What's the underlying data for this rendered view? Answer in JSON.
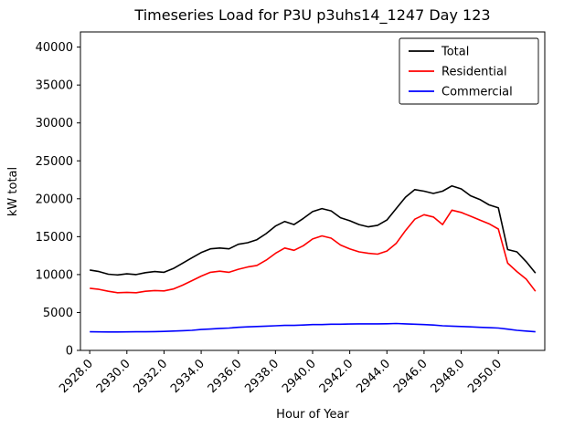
{
  "chart_data": {
    "type": "line",
    "title": "Timeseries Load for P3U p3uhs14_1247  Day 123",
    "xlabel": "Hour of Year",
    "ylabel": "kW total",
    "grid": false,
    "legend_position": "upper right",
    "xlim": [
      2927.5,
      2952.5
    ],
    "ylim": [
      0,
      42000
    ],
    "xticks": [
      2928,
      2930,
      2932,
      2934,
      2936,
      2938,
      2940,
      2942,
      2944,
      2946,
      2948,
      2950
    ],
    "xtick_labels": [
      "2928.0",
      "2930.0",
      "2932.0",
      "2934.0",
      "2936.0",
      "2938.0",
      "2940.0",
      "2942.0",
      "2944.0",
      "2946.0",
      "2948.0",
      "2950.0"
    ],
    "yticks": [
      0,
      5000,
      10000,
      15000,
      20000,
      25000,
      30000,
      35000,
      40000
    ],
    "ytick_labels": [
      "0",
      "5000",
      "10000",
      "15000",
      "20000",
      "25000",
      "30000",
      "35000",
      "40000"
    ],
    "x": [
      2928.0,
      2928.5,
      2929.0,
      2929.5,
      2930.0,
      2930.5,
      2931.0,
      2931.5,
      2932.0,
      2932.5,
      2933.0,
      2933.5,
      2934.0,
      2934.5,
      2935.0,
      2935.5,
      2936.0,
      2936.5,
      2937.0,
      2937.5,
      2938.0,
      2938.5,
      2939.0,
      2939.5,
      2940.0,
      2940.5,
      2941.0,
      2941.5,
      2942.0,
      2942.5,
      2943.0,
      2943.5,
      2944.0,
      2944.5,
      2945.0,
      2945.5,
      2946.0,
      2946.5,
      2947.0,
      2947.5,
      2948.0,
      2948.5,
      2949.0,
      2949.5,
      2950.0,
      2950.5,
      2951.0,
      2951.5,
      2952.0
    ],
    "series": [
      {
        "name": "Total",
        "color": "#000000",
        "values": [
          10600,
          10400,
          10050,
          9950,
          10100,
          10000,
          10250,
          10400,
          10300,
          10800,
          11500,
          12200,
          12900,
          13400,
          13500,
          13400,
          14000,
          14200,
          14600,
          15400,
          16400,
          17000,
          16600,
          17400,
          18300,
          18700,
          18400,
          17500,
          17100,
          16600,
          16300,
          16500,
          17200,
          18700,
          20200,
          21200,
          21000,
          20700,
          21000,
          21700,
          21300,
          20400,
          19900,
          19200,
          18800,
          13300,
          13000,
          11700,
          10200
        ]
      },
      {
        "name": "Residential",
        "color": "#ff0000",
        "values": [
          8200,
          8050,
          7800,
          7600,
          7650,
          7600,
          7800,
          7900,
          7850,
          8100,
          8600,
          9200,
          9800,
          10300,
          10450,
          10300,
          10700,
          11000,
          11200,
          11900,
          12800,
          13500,
          13200,
          13800,
          14700,
          15100,
          14800,
          13900,
          13400,
          13000,
          12800,
          12700,
          13100,
          14100,
          15800,
          17300,
          17900,
          17600,
          16600,
          18500,
          18200,
          17700,
          17200,
          16700,
          16000,
          11500,
          10400,
          9400,
          7800
        ]
      },
      {
        "name": "Commercial",
        "color": "#0000ff",
        "values": [
          2450,
          2440,
          2430,
          2430,
          2440,
          2450,
          2460,
          2480,
          2500,
          2550,
          2600,
          2650,
          2750,
          2820,
          2900,
          2950,
          3050,
          3100,
          3150,
          3200,
          3250,
          3300,
          3300,
          3350,
          3400,
          3400,
          3450,
          3450,
          3480,
          3500,
          3500,
          3500,
          3520,
          3550,
          3500,
          3450,
          3400,
          3350,
          3250,
          3200,
          3150,
          3100,
          3050,
          3000,
          2950,
          2800,
          2650,
          2550,
          2450
        ]
      }
    ]
  }
}
